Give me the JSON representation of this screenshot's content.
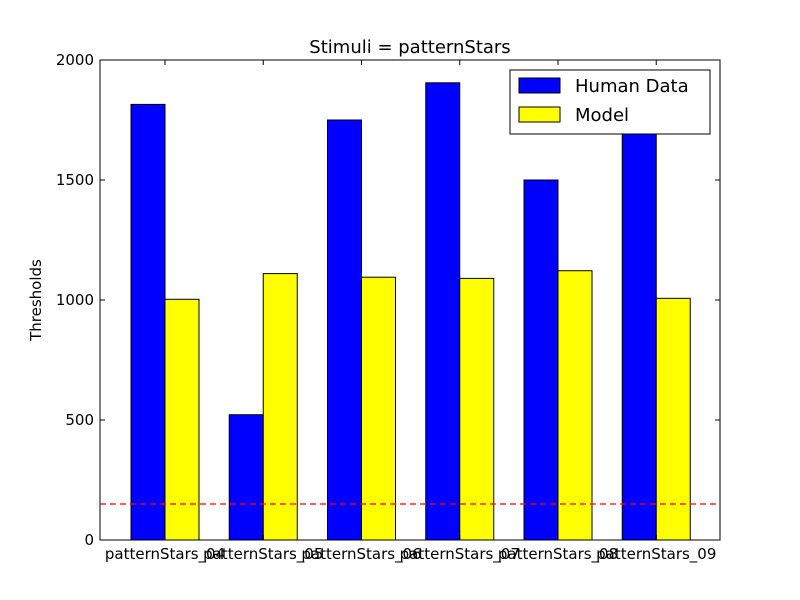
{
  "chart_data": {
    "type": "bar",
    "title": "Stimuli = patternStars",
    "xlabel": "",
    "ylabel": "Thresholds",
    "categories": [
      "patternStars_04",
      "patternStars_05",
      "patternStars_06",
      "patternStars_07",
      "patternStars_08",
      "patternStars_09"
    ],
    "series": [
      {
        "name": "Human Data",
        "color": "#0000ff",
        "values": [
          1815,
          522,
          1750,
          1905,
          1500,
          1700
        ]
      },
      {
        "name": "Model",
        "color": "#ffff00",
        "values": [
          1003,
          1110,
          1095,
          1090,
          1122,
          1007
        ]
      }
    ],
    "ylim": [
      0,
      2000
    ],
    "yticks": [
      0,
      500,
      1000,
      1500,
      2000
    ],
    "reference_line": {
      "value": 150,
      "color": "#ff0000",
      "style": "dashed"
    },
    "legend_position": "top-right",
    "grid": false
  }
}
